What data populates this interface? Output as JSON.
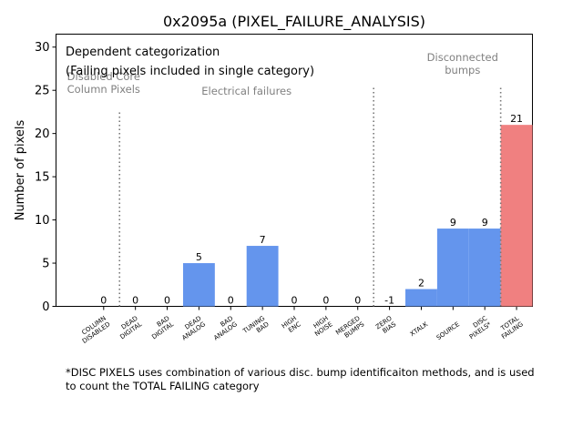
{
  "chart_data": {
    "type": "bar",
    "title": "0x2095a (PIXEL_FAILURE_ANALYSIS)",
    "xlabel": "",
    "ylabel": "Number of pixels",
    "ylim": [
      0,
      31.5
    ],
    "yticks": [
      0,
      5,
      10,
      15,
      20,
      25,
      30
    ],
    "grid": false,
    "bars": [
      {
        "category": "COLUMN\nDISABLED",
        "value": 0,
        "color": "#6495ed",
        "label": "0"
      },
      {
        "category": "DEAD\nDIGITAL",
        "value": 0,
        "color": "#6495ed",
        "label": "0"
      },
      {
        "category": "BAD\nDIGITAL",
        "value": 0,
        "color": "#6495ed",
        "label": "0"
      },
      {
        "category": "DEAD\nANALOG",
        "value": 5,
        "color": "#6495ed",
        "label": "5"
      },
      {
        "category": "BAD\nANALOG",
        "value": 0,
        "color": "#6495ed",
        "label": "0"
      },
      {
        "category": "TUNING\nBAD",
        "value": 7,
        "color": "#6495ed",
        "label": "7"
      },
      {
        "category": "HIGH\nENC",
        "value": 0,
        "color": "#6495ed",
        "label": "0"
      },
      {
        "category": "HIGH\nNOISE",
        "value": 0,
        "color": "#6495ed",
        "label": "0"
      },
      {
        "category": "MERGED\nBUMPS",
        "value": 0,
        "color": "#6495ed",
        "label": "0"
      },
      {
        "category": "ZERO\nBIAS",
        "value": -1,
        "color": "#6495ed",
        "label": "-1"
      },
      {
        "category": "XTALK",
        "value": 2,
        "color": "#6495ed",
        "label": "2"
      },
      {
        "category": "SOURCE",
        "value": 9,
        "color": "#6495ed",
        "label": "9"
      },
      {
        "category": "DISC\nPIXELS*",
        "value": 9,
        "color": "#6495ed",
        "label": "9"
      },
      {
        "category": "TOTAL\nFAILING",
        "value": 21,
        "color": "#f08080",
        "label": "21"
      }
    ],
    "separators": [
      {
        "after_index": 0,
        "top": 22.5
      },
      {
        "after_index": 8,
        "top": 25.3
      },
      {
        "after_index": 12,
        "top": 25.3
      }
    ],
    "group_labels": [
      {
        "text": "Disabled Core\nColumn Pixels",
        "x_index": 0,
        "y": 26.2,
        "anchor": "middle"
      },
      {
        "text": "Electrical failures",
        "x_index": 4.5,
        "y": 24.5,
        "anchor": "middle"
      },
      {
        "text": "Disconnected\nbumps",
        "x_index": 11.3,
        "y": 28.4,
        "anchor": "middle"
      }
    ],
    "legend_text": {
      "line1": "Dependent categorization",
      "line2": "(Failing pixels included in single category)"
    },
    "footnote": {
      "line1": "*DISC PIXELS uses combination of various disc. bump identificaiton methods, and is used",
      "line2": "to count the TOTAL FAILING category"
    }
  }
}
